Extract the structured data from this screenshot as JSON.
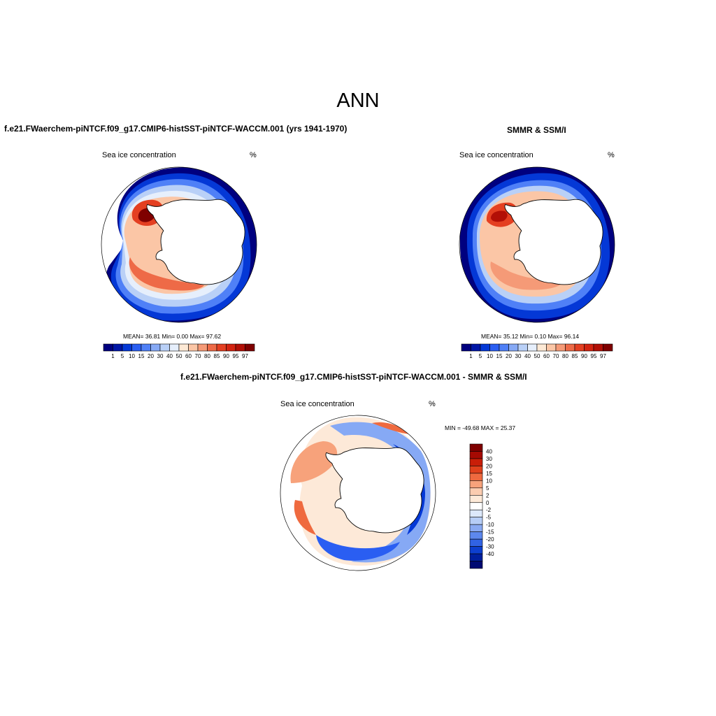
{
  "figure": {
    "title": "ANN",
    "panels": [
      {
        "id": "model",
        "title": "f.e21.FWaerchem-piNTCF.f09_g17.CMIP6-histSST-piNTCF-WACCM.001 (yrs 1941-1970)",
        "variable": "Sea ice concentration",
        "units": "%",
        "stats": "MEAN=  36.81  Min=   0.00  Max=  97.62",
        "colorbar_labels": [
          "1",
          "5",
          "10",
          "15",
          "20",
          "30",
          "40",
          "50",
          "60",
          "70",
          "80",
          "85",
          "90",
          "95",
          "97"
        ]
      },
      {
        "id": "obs",
        "title": "SMMR & SSM/I",
        "variable": "Sea ice concentration",
        "units": "%",
        "stats": "MEAN=  35.12  Min=   0.10  Max=  96.14",
        "colorbar_labels": [
          "1",
          "5",
          "10",
          "15",
          "20",
          "30",
          "40",
          "50",
          "60",
          "70",
          "80",
          "85",
          "90",
          "95",
          "97"
        ]
      },
      {
        "id": "diff",
        "title": "f.e21.FWaerchem-piNTCF.f09_g17.CMIP6-histSST-piNTCF-WACCM.001 - SMMR & SSM/I",
        "variable": "Sea ice concentration",
        "units": "%",
        "stats": "MIN = -49.68 MAX =  25.37",
        "colorbar_labels": [
          "40",
          "30",
          "20",
          "15",
          "10",
          "5",
          "2",
          "0",
          "-2",
          "-5",
          "-10",
          "-15",
          "-20",
          "-30",
          "-40"
        ]
      }
    ],
    "colors": {
      "abs_scale": [
        "#00007f",
        "#0016a6",
        "#0438d6",
        "#2a5ef2",
        "#4f80f7",
        "#86a9f5",
        "#b9d0f7",
        "#e6effc",
        "#fde9d5",
        "#fbc6a6",
        "#f59a77",
        "#ee6a47",
        "#e43f21",
        "#d32310",
        "#b20f06",
        "#7f0000"
      ],
      "diff_scale": [
        "#7f0000",
        "#a50a03",
        "#c91e08",
        "#e0411c",
        "#ef6a3f",
        "#f7a27b",
        "#fbccb0",
        "#fde9d8",
        "#ffffff",
        "#dce8fb",
        "#b6cdf6",
        "#8aaaf2",
        "#5d88ee",
        "#3163e4",
        "#0d3fcf",
        "#001f9e",
        "#000a72"
      ]
    }
  }
}
